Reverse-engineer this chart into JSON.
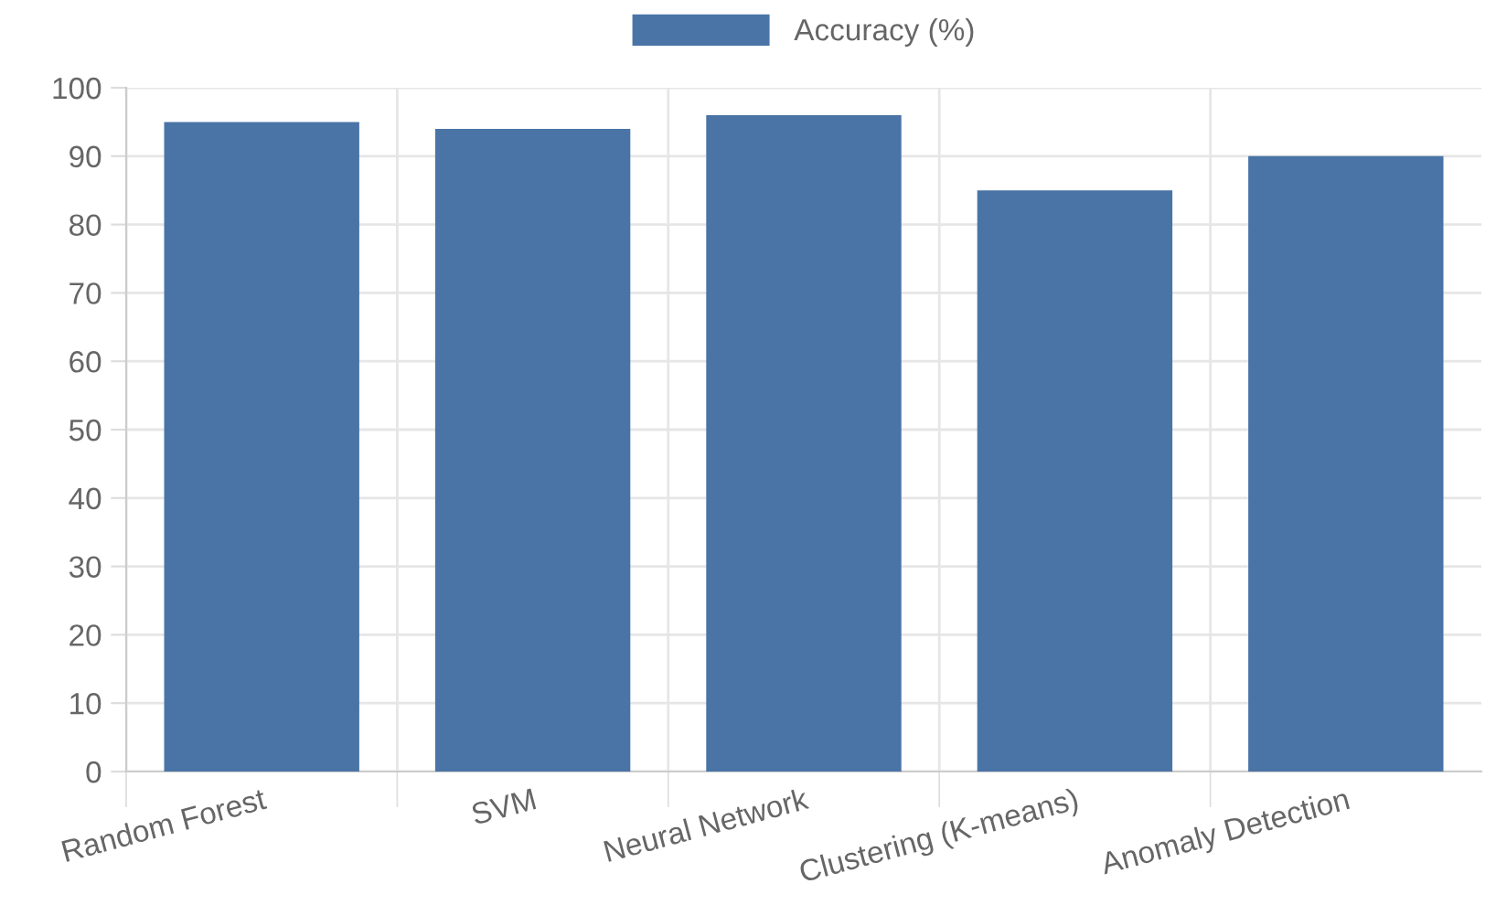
{
  "chart_data": {
    "type": "bar",
    "categories": [
      "Random Forest",
      "SVM",
      "Neural Network",
      "Clustering (K-means)",
      "Anomaly Detection"
    ],
    "series": [
      {
        "name": "Accuracy (%)",
        "color": "#4a74a6",
        "values": [
          95,
          94,
          96,
          85,
          90
        ]
      }
    ],
    "ylim": [
      0,
      100
    ],
    "yticks": [
      0,
      10,
      20,
      30,
      40,
      50,
      60,
      70,
      80,
      90,
      100
    ],
    "grid": true,
    "legend": "top"
  }
}
